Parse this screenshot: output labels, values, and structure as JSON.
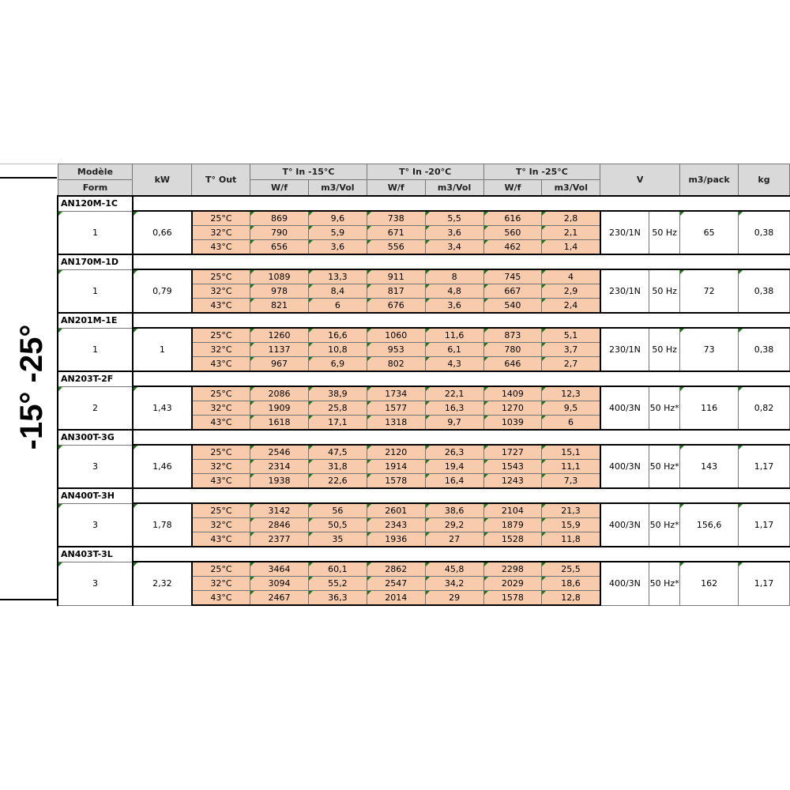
{
  "side_label": "-15° -25°",
  "header": {
    "model": "Modèle",
    "form": "Form",
    "kw": "kW",
    "t_out": "T° Out",
    "t_in_15": "T° In -15°C",
    "t_in_20": "T° In -20°C",
    "t_in_25": "T° In -25°C",
    "wf": "W/f",
    "m3vol": "m3/Vol",
    "v": "V",
    "m3pack": "m3/pack",
    "kg": "kg"
  },
  "colors": {
    "cell_orange": "#f8cbad",
    "header_gray": "#d9d9d9"
  },
  "models": [
    {
      "name": "AN120M-1C",
      "form": "1",
      "kw": "0,66",
      "v": "230/1N",
      "hz": "50 Hz",
      "m3pack": "65",
      "kg": "0,38",
      "rows": [
        [
          "25°C",
          "869",
          "9,6",
          "738",
          "5,5",
          "616",
          "2,8"
        ],
        [
          "32°C",
          "790",
          "5,9",
          "671",
          "3,6",
          "560",
          "2,1"
        ],
        [
          "43°C",
          "656",
          "3,6",
          "556",
          "3,4",
          "462",
          "1,4"
        ]
      ]
    },
    {
      "name": "AN170M-1D",
      "form": "1",
      "kw": "0,79",
      "v": "230/1N",
      "hz": "50 Hz",
      "m3pack": "72",
      "kg": "0,38",
      "rows": [
        [
          "25°C",
          "1089",
          "13,3",
          "911",
          "8",
          "745",
          "4"
        ],
        [
          "32°C",
          "978",
          "8,4",
          "817",
          "4,8",
          "667",
          "2,9"
        ],
        [
          "43°C",
          "821",
          "6",
          "676",
          "3,6",
          "540",
          "2,4"
        ]
      ]
    },
    {
      "name": "AN201M-1E",
      "form": "1",
      "kw": "1",
      "v": "230/1N",
      "hz": "50 Hz",
      "m3pack": "73",
      "kg": "0,38",
      "rows": [
        [
          "25°C",
          "1260",
          "16,6",
          "1060",
          "11,6",
          "873",
          "5,1"
        ],
        [
          "32°C",
          "1137",
          "10,8",
          "953",
          "6,1",
          "780",
          "3,7"
        ],
        [
          "43°C",
          "967",
          "6,9",
          "802",
          "4,3",
          "646",
          "2,7"
        ]
      ]
    },
    {
      "name": "AN203T-2F",
      "form": "2",
      "kw": "1,43",
      "v": "400/3N",
      "hz": "50 Hz*",
      "m3pack": "116",
      "kg": "0,82",
      "rows": [
        [
          "25°C",
          "2086",
          "38,9",
          "1734",
          "22,1",
          "1409",
          "12,3"
        ],
        [
          "32°C",
          "1909",
          "25,8",
          "1577",
          "16,3",
          "1270",
          "9,5"
        ],
        [
          "43°C",
          "1618",
          "17,1",
          "1318",
          "9,7",
          "1039",
          "6"
        ]
      ]
    },
    {
      "name": "AN300T-3G",
      "form": "3",
      "kw": "1,46",
      "v": "400/3N",
      "hz": "50 Hz*",
      "m3pack": "143",
      "kg": "1,17",
      "rows": [
        [
          "25°C",
          "2546",
          "47,5",
          "2120",
          "26,3",
          "1727",
          "15,1"
        ],
        [
          "32°C",
          "2314",
          "31,8",
          "1914",
          "19,4",
          "1543",
          "11,1"
        ],
        [
          "43°C",
          "1938",
          "22,6",
          "1578",
          "16,4",
          "1243",
          "7,3"
        ]
      ]
    },
    {
      "name": "AN400T-3H",
      "form": "3",
      "kw": "1,78",
      "v": "400/3N",
      "hz": "50 Hz*",
      "m3pack": "156,6",
      "kg": "1,17",
      "rows": [
        [
          "25°C",
          "3142",
          "56",
          "2601",
          "38,6",
          "2104",
          "21,3"
        ],
        [
          "32°C",
          "2846",
          "50,5",
          "2343",
          "29,2",
          "1879",
          "15,9"
        ],
        [
          "43°C",
          "2377",
          "35",
          "1936",
          "27",
          "1528",
          "11,8"
        ]
      ]
    },
    {
      "name": "AN403T-3L",
      "form": "3",
      "kw": "2,32",
      "v": "400/3N",
      "hz": "50 Hz*",
      "m3pack": "162",
      "kg": "1,17",
      "rows": [
        [
          "25°C",
          "3464",
          "60,1",
          "2862",
          "45,8",
          "2298",
          "25,5"
        ],
        [
          "32°C",
          "3094",
          "55,2",
          "2547",
          "34,2",
          "2029",
          "18,6"
        ],
        [
          "43°C",
          "2467",
          "36,3",
          "2014",
          "29",
          "1578",
          "12,8"
        ]
      ]
    }
  ]
}
